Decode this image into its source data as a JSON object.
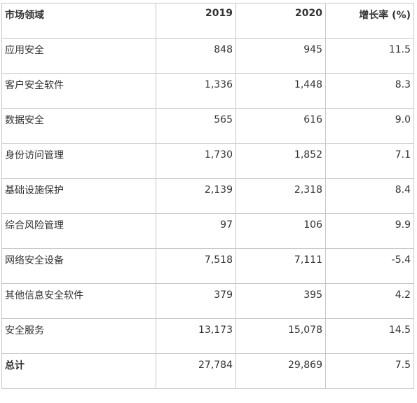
{
  "table": {
    "headers": [
      "市场领域",
      "2019",
      "2020",
      "增长率 (%)"
    ],
    "rows": [
      [
        "应用安全",
        "848",
        "945",
        "11.5"
      ],
      [
        "客户安全软件",
        "1,336",
        "1,448",
        "8.3"
      ],
      [
        "数据安全",
        "565",
        "616",
        "9.0"
      ],
      [
        "身份访问管理",
        "1,730",
        "1,852",
        "7.1"
      ],
      [
        "基础设施保护",
        "2,139",
        "2,318",
        "8.4"
      ],
      [
        "综合风险管理",
        "97",
        "106",
        "9.9"
      ],
      [
        "网络安全设备",
        "7,518",
        "7,111",
        "-5.4"
      ],
      [
        "其他信息安全软件",
        "379",
        "395",
        "4.2"
      ],
      [
        "安全服务",
        "13,173",
        "15,078",
        "14.5"
      ]
    ],
    "total": [
      "总计",
      "27,784",
      "29,869",
      "7.5"
    ]
  }
}
